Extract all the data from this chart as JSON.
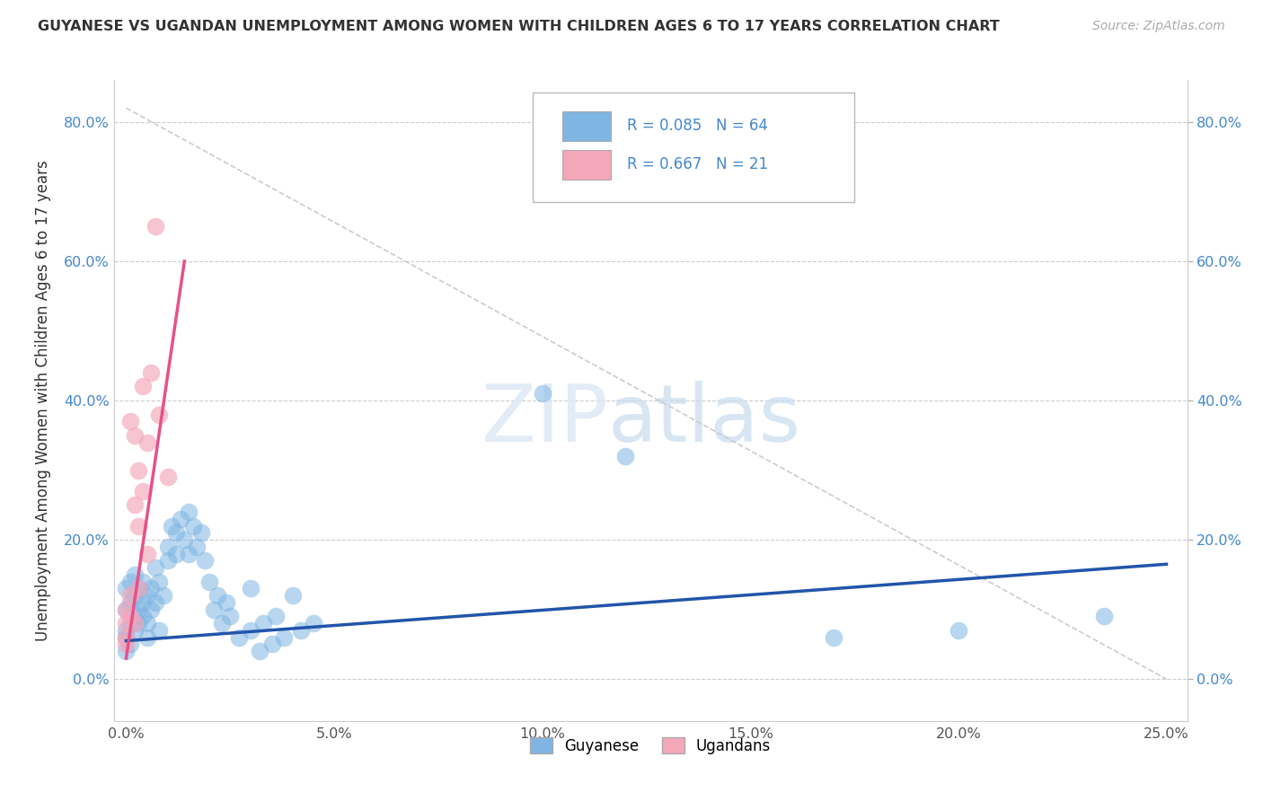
{
  "title": "GUYANESE VS UGANDAN UNEMPLOYMENT AMONG WOMEN WITH CHILDREN AGES 6 TO 17 YEARS CORRELATION CHART",
  "source": "Source: ZipAtlas.com",
  "ylabel": "Unemployment Among Women with Children Ages 6 to 17 years",
  "xlim": [
    -0.003,
    0.255
  ],
  "ylim": [
    -0.06,
    0.86
  ],
  "xticks": [
    0.0,
    0.05,
    0.1,
    0.15,
    0.2,
    0.25
  ],
  "xticklabels": [
    "0.0%",
    "5.0%",
    "10.0%",
    "15.0%",
    "20.0%",
    "25.0%"
  ],
  "yticks": [
    0.0,
    0.2,
    0.4,
    0.6,
    0.8
  ],
  "yticklabels": [
    "0.0%",
    "20.0%",
    "40.0%",
    "60.0%",
    "80.0%"
  ],
  "guyanese_color": "#7eb5e3",
  "ugandan_color": "#f4a7b9",
  "guyanese_line_color": "#2255aa",
  "ugandan_line_color": "#e8508a",
  "dashed_line_color": "#cccccc",
  "R_guyanese": 0.085,
  "N_guyanese": 64,
  "R_ugandan": 0.667,
  "N_ugandan": 21,
  "background_color": "#ffffff",
  "guyanese_line_x": [
    0.0,
    0.25
  ],
  "guyanese_line_y": [
    0.055,
    0.165
  ],
  "ugandan_line_x": [
    0.0,
    0.014
  ],
  "ugandan_line_y": [
    0.03,
    0.6
  ],
  "diag_line_x": [
    0.0,
    0.25
  ],
  "diag_line_y": [
    0.82,
    0.0
  ]
}
